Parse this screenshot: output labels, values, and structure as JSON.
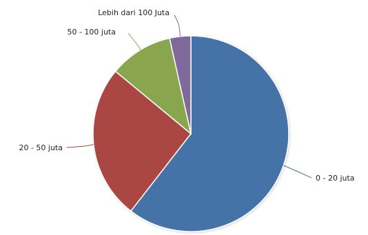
{
  "chart_data": {
    "type": "pie",
    "title": "",
    "legend": "none",
    "slices": [
      {
        "label": "0 - 20 juta",
        "value": 60.5,
        "color": "#4572A7"
      },
      {
        "label": "20 - 50 juta",
        "value": 25.5,
        "color": "#AA4643"
      },
      {
        "label": "50 - 100 juta",
        "value": 10.5,
        "color": "#89A54E"
      },
      {
        "label": "Lebih dari 100 Juta",
        "value": 3.5,
        "color": "#80699B"
      }
    ]
  }
}
